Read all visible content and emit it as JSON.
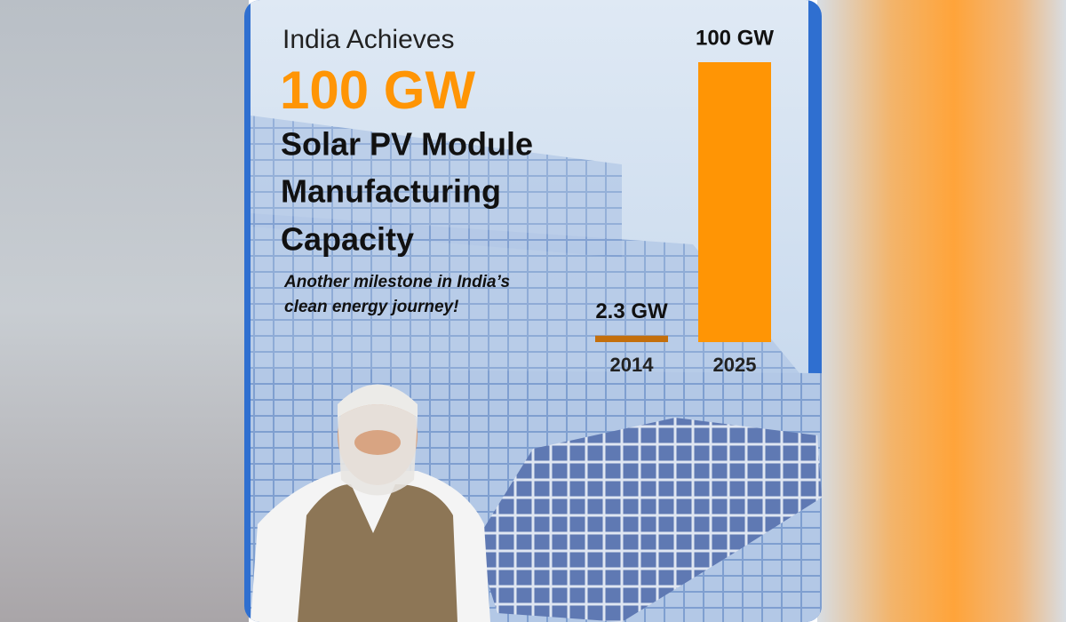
{
  "chart_data": {
    "type": "bar",
    "title": [
      "India Achieves",
      "100 GW",
      "Solar PV Module",
      "Manufacturing",
      "Capacity"
    ],
    "subtitle": [
      "Another milestone in India’s",
      "clean energy journey!"
    ],
    "categories": [
      "2014",
      "2025"
    ],
    "values": [
      2.3,
      100
    ],
    "value_labels": [
      "2.3 GW",
      "100 GW"
    ],
    "colors": [
      "#c46f0c",
      "#ff9505"
    ]
  }
}
